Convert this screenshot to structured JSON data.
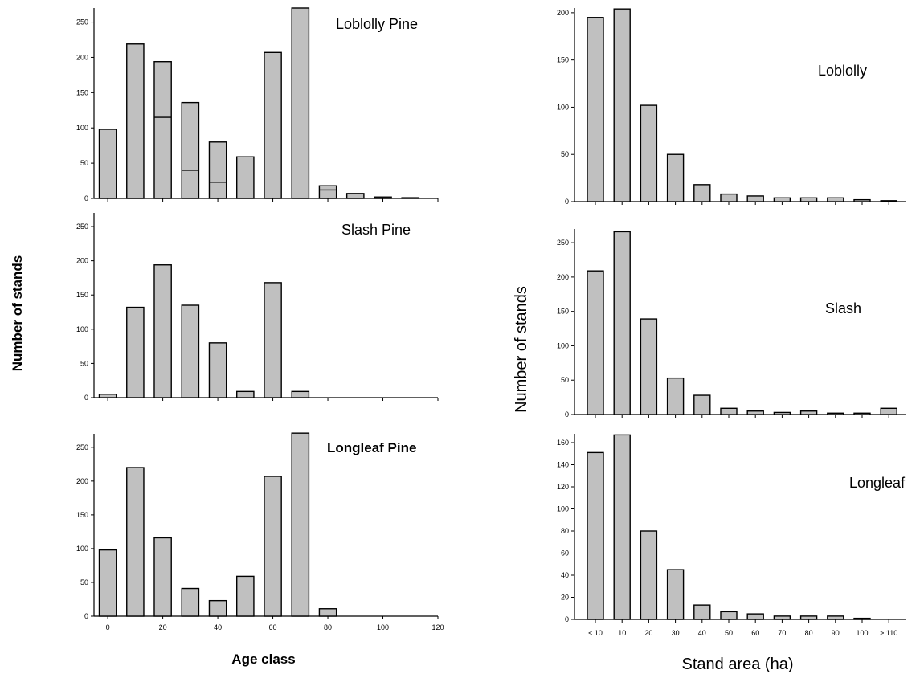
{
  "labels": {
    "left_y": "Number of stands",
    "left_x": "Age class",
    "right_y": "Number of stands",
    "right_x": "Stand area (ha)"
  },
  "chart_data": [
    {
      "type": "bar",
      "title": "Loblolly Pine",
      "categories": [
        0,
        10,
        20,
        30,
        40,
        50,
        60,
        70,
        80,
        90,
        100,
        110
      ],
      "values": [
        98,
        219,
        194,
        136,
        80,
        59,
        207,
        270,
        18,
        7,
        2,
        1
      ],
      "inner_divisions": [
        null,
        null,
        115,
        40,
        23,
        null,
        null,
        null,
        12,
        null,
        null,
        null
      ],
      "ylim": [
        0,
        270
      ],
      "yticks": [
        0,
        50,
        100,
        150,
        200,
        250
      ],
      "xlim": [
        -5,
        120
      ],
      "xticks": [
        0,
        20,
        40,
        60,
        80,
        100,
        120
      ],
      "xtick_labels": []
    },
    {
      "type": "bar",
      "title": "Slash Pine",
      "categories": [
        0,
        10,
        20,
        30,
        40,
        50,
        60,
        70
      ],
      "values": [
        5,
        132,
        194,
        135,
        80,
        9,
        168,
        9
      ],
      "ylim": [
        0,
        270
      ],
      "yticks": [
        0,
        50,
        100,
        150,
        200,
        250
      ],
      "xlim": [
        -5,
        120
      ],
      "xticks": [
        0,
        20,
        40,
        60,
        80,
        100,
        120
      ],
      "xtick_labels": []
    },
    {
      "type": "bar",
      "title": "Longleaf Pine",
      "categories": [
        0,
        10,
        20,
        30,
        40,
        50,
        60,
        70,
        80
      ],
      "values": [
        98,
        220,
        116,
        41,
        23,
        59,
        207,
        271,
        11
      ],
      "ylim": [
        0,
        270
      ],
      "yticks": [
        0,
        50,
        100,
        150,
        200,
        250
      ],
      "xlim": [
        -5,
        120
      ],
      "xticks": [
        0,
        20,
        40,
        60,
        80,
        100,
        120
      ],
      "xtick_labels": [
        "0",
        "20",
        "40",
        "60",
        "80",
        "100",
        "120"
      ]
    },
    {
      "type": "bar",
      "title": "Loblolly",
      "categories": [
        "< 10",
        "10",
        "20",
        "30",
        "40",
        "50",
        "60",
        "70",
        "80",
        "90",
        "100",
        "> 110"
      ],
      "values": [
        195,
        204,
        102,
        50,
        18,
        8,
        6,
        4,
        4,
        4,
        2,
        1
      ],
      "ylim": [
        0,
        205
      ],
      "yticks": [
        0,
        50,
        100,
        150,
        200
      ],
      "show_xtick_labels": false
    },
    {
      "type": "bar",
      "title": "Slash",
      "categories": [
        "< 10",
        "10",
        "20",
        "30",
        "40",
        "50",
        "60",
        "70",
        "80",
        "90",
        "100",
        "> 110"
      ],
      "values": [
        209,
        266,
        139,
        53,
        28,
        9,
        5,
        3,
        5,
        2,
        2,
        9
      ],
      "ylim": [
        0,
        270
      ],
      "yticks": [
        0,
        50,
        100,
        150,
        200,
        250
      ],
      "show_xtick_labels": false
    },
    {
      "type": "bar",
      "title": "Longleaf",
      "categories": [
        "< 10",
        "10",
        "20",
        "30",
        "40",
        "50",
        "60",
        "70",
        "80",
        "90",
        "100",
        "> 110"
      ],
      "values": [
        151,
        167,
        80,
        45,
        13,
        7,
        5,
        3,
        3,
        3,
        1,
        0
      ],
      "ylim": [
        0,
        168
      ],
      "yticks": [
        0,
        20,
        40,
        60,
        80,
        100,
        120,
        140,
        160
      ],
      "show_xtick_labels": true
    }
  ]
}
